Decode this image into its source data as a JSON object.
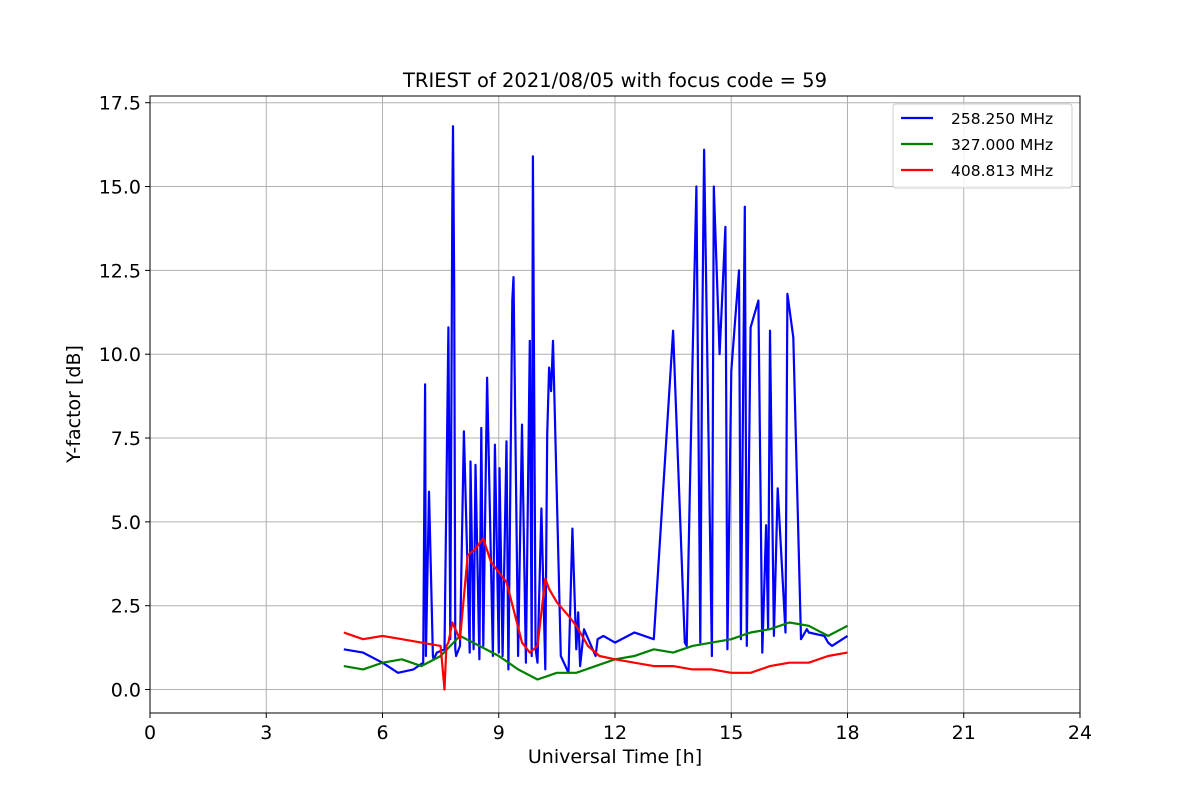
{
  "chart_data": {
    "type": "line",
    "title": "TRIEST of 2021/08/05 with focus code = 59",
    "xlabel": "Universal Time [h]",
    "ylabel": "Y-factor [dB]",
    "xlim": [
      0,
      24
    ],
    "ylim": [
      -0.7,
      17.7
    ],
    "xticks": [
      0,
      3,
      6,
      9,
      12,
      15,
      18,
      21,
      24
    ],
    "yticks": [
      0.0,
      2.5,
      5.0,
      7.5,
      10.0,
      12.5,
      15.0,
      17.5
    ],
    "xtick_labels": [
      "0",
      "3",
      "6",
      "9",
      "12",
      "15",
      "18",
      "21",
      "24"
    ],
    "ytick_labels": [
      "0.0",
      "2.5",
      "5.0",
      "7.5",
      "10.0",
      "12.5",
      "15.0",
      "17.5"
    ],
    "grid": true,
    "legend_position": "top-right",
    "series": [
      {
        "name": "258.250 MHz",
        "color": "#0000ff",
        "x": [
          5.0,
          5.5,
          6.0,
          6.4,
          6.8,
          7.05,
          7.1,
          7.12,
          7.2,
          7.3,
          7.32,
          7.4,
          7.6,
          7.7,
          7.75,
          7.8,
          7.82,
          7.85,
          7.88,
          7.9,
          8.0,
          8.1,
          8.25,
          8.27,
          8.35,
          8.4,
          8.5,
          8.55,
          8.6,
          8.7,
          8.85,
          8.9,
          9.0,
          9.02,
          9.1,
          9.2,
          9.25,
          9.35,
          9.38,
          9.5,
          9.6,
          9.7,
          9.8,
          9.85,
          9.88,
          9.95,
          10.0,
          10.1,
          10.2,
          10.25,
          10.3,
          10.35,
          10.4,
          10.6,
          10.8,
          10.9,
          11.0,
          11.05,
          11.1,
          11.2,
          11.5,
          11.55,
          11.7,
          12.0,
          12.5,
          13.0,
          13.5,
          13.8,
          13.85,
          14.0,
          14.1,
          14.2,
          14.25,
          14.3,
          14.5,
          14.55,
          14.7,
          14.85,
          14.9,
          15.0,
          15.1,
          15.2,
          15.25,
          15.35,
          15.4,
          15.5,
          15.7,
          15.8,
          15.9,
          15.95,
          16.0,
          16.1,
          16.2,
          16.4,
          16.45,
          16.6,
          16.8,
          16.9,
          16.95,
          17.0,
          17.4,
          17.45,
          17.5,
          17.6,
          18.0
        ],
        "y": [
          1.2,
          1.1,
          0.8,
          0.5,
          0.6,
          0.8,
          9.1,
          1.0,
          5.9,
          1.0,
          0.9,
          1.1,
          1.2,
          10.8,
          1.5,
          14.4,
          16.8,
          12.0,
          1.2,
          1.0,
          1.3,
          7.7,
          1.1,
          6.8,
          1.2,
          6.7,
          0.9,
          7.8,
          1.3,
          9.3,
          1.0,
          7.3,
          1.1,
          6.6,
          1.0,
          7.4,
          0.6,
          11.6,
          12.3,
          1.0,
          7.9,
          0.8,
          10.4,
          1.0,
          15.9,
          1.2,
          0.8,
          5.4,
          0.6,
          7.6,
          9.6,
          8.9,
          10.4,
          1.0,
          0.5,
          4.8,
          1.2,
          2.3,
          0.7,
          1.8,
          1.0,
          1.5,
          1.6,
          1.4,
          1.7,
          1.5,
          10.7,
          1.4,
          1.3,
          9.8,
          15.0,
          1.4,
          10.5,
          16.1,
          1.0,
          15.0,
          10.0,
          13.8,
          1.2,
          9.5,
          11.0,
          12.5,
          1.5,
          14.4,
          1.3,
          10.8,
          11.6,
          1.1,
          4.9,
          1.8,
          10.7,
          1.6,
          6.0,
          1.7,
          11.8,
          10.5,
          1.5,
          1.7,
          1.8,
          1.7,
          1.6,
          1.5,
          1.4,
          1.3,
          1.6
        ]
      },
      {
        "name": "327.000 MHz",
        "color": "#008000",
        "x": [
          5.0,
          5.5,
          6.0,
          6.5,
          7.0,
          7.5,
          8.0,
          8.5,
          9.0,
          9.5,
          10.0,
          10.5,
          11.0,
          11.5,
          12.0,
          12.5,
          13.0,
          13.5,
          14.0,
          14.5,
          15.0,
          15.5,
          16.0,
          16.5,
          17.0,
          17.5,
          18.0
        ],
        "y": [
          0.7,
          0.6,
          0.8,
          0.9,
          0.7,
          1.0,
          1.6,
          1.3,
          1.0,
          0.6,
          0.3,
          0.5,
          0.5,
          0.7,
          0.9,
          1.0,
          1.2,
          1.1,
          1.3,
          1.4,
          1.5,
          1.7,
          1.8,
          2.0,
          1.9,
          1.6,
          1.9
        ]
      },
      {
        "name": "408.813 MHz",
        "color": "#ff0000",
        "x": [
          5.0,
          5.5,
          6.0,
          6.5,
          7.0,
          7.5,
          7.6,
          7.65,
          7.7,
          7.8,
          8.0,
          8.2,
          8.4,
          8.6,
          8.8,
          9.0,
          9.2,
          9.4,
          9.6,
          9.8,
          10.0,
          10.2,
          10.3,
          10.5,
          10.8,
          11.0,
          11.3,
          11.6,
          12.0,
          12.5,
          13.0,
          13.5,
          14.0,
          14.5,
          15.0,
          15.5,
          16.0,
          16.5,
          17.0,
          17.5,
          18.0
        ],
        "y": [
          1.7,
          1.5,
          1.6,
          1.5,
          1.4,
          1.3,
          0.0,
          1.3,
          1.4,
          2.0,
          1.5,
          4.0,
          4.2,
          4.5,
          3.8,
          3.5,
          3.2,
          2.3,
          1.4,
          1.1,
          1.3,
          3.3,
          3.0,
          2.6,
          2.2,
          1.9,
          1.3,
          1.0,
          0.9,
          0.8,
          0.7,
          0.7,
          0.6,
          0.6,
          0.5,
          0.5,
          0.7,
          0.8,
          0.8,
          1.0,
          1.1
        ]
      }
    ]
  }
}
